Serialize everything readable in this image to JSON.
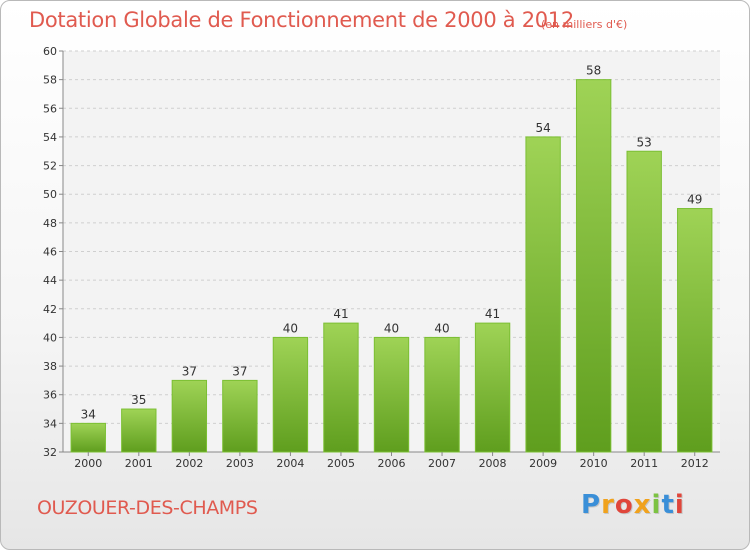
{
  "chart_data": {
    "type": "bar",
    "title": "Dotation Globale de Fonctionnement de 2000 à 2012",
    "unit": "(en milliers d'€)",
    "categories": [
      "2000",
      "2001",
      "2002",
      "2003",
      "2004",
      "2005",
      "2006",
      "2007",
      "2008",
      "2009",
      "2010",
      "2011",
      "2012"
    ],
    "values": [
      34,
      35,
      37,
      37,
      40,
      41,
      40,
      40,
      41,
      54,
      58,
      53,
      49
    ],
    "ylim": [
      32,
      60
    ],
    "yticks": [
      32,
      34,
      36,
      38,
      40,
      42,
      44,
      46,
      48,
      50,
      52,
      54,
      56,
      58,
      60
    ],
    "grid": true,
    "bar_color": "#8cc63f"
  },
  "location": "OUZOUER-DES-CHAMPS",
  "logo": {
    "letters": [
      "P",
      "r",
      "o",
      "x",
      "i",
      "t",
      "i"
    ],
    "colors": [
      "#3a8fd8",
      "#f0a21d",
      "#e0463b",
      "#f0a21d",
      "#7cc242",
      "#3a8fd8",
      "#e0463b"
    ]
  }
}
